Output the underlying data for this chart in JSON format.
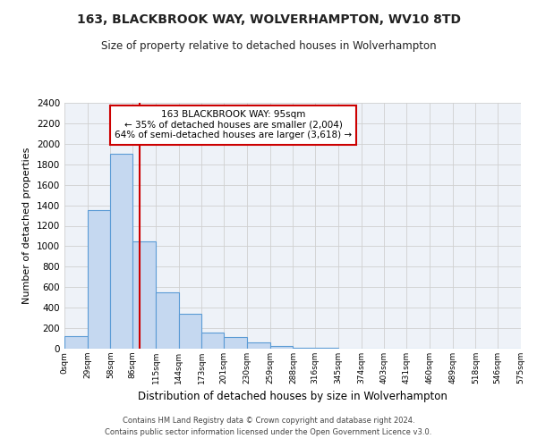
{
  "title": "163, BLACKBROOK WAY, WOLVERHAMPTON, WV10 8TD",
  "subtitle": "Size of property relative to detached houses in Wolverhampton",
  "xlabel": "Distribution of detached houses by size in Wolverhampton",
  "ylabel": "Number of detached properties",
  "footer_line1": "Contains HM Land Registry data © Crown copyright and database right 2024.",
  "footer_line2": "Contains public sector information licensed under the Open Government Licence v3.0.",
  "bin_edges": [
    0,
    29,
    58,
    86,
    115,
    144,
    173,
    201,
    230,
    259,
    288,
    316,
    345,
    374,
    403,
    431,
    460,
    489,
    518,
    546,
    575
  ],
  "bin_labels": [
    "0sqm",
    "29sqm",
    "58sqm",
    "86sqm",
    "115sqm",
    "144sqm",
    "173sqm",
    "201sqm",
    "230sqm",
    "259sqm",
    "288sqm",
    "316sqm",
    "345sqm",
    "374sqm",
    "403sqm",
    "431sqm",
    "460sqm",
    "489sqm",
    "518sqm",
    "546sqm",
    "575sqm"
  ],
  "counts": [
    120,
    1350,
    1900,
    1050,
    550,
    340,
    155,
    110,
    60,
    30,
    10,
    5,
    3,
    2,
    1,
    1,
    0,
    1,
    0,
    0
  ],
  "bar_color": "#c5d8f0",
  "bar_edge_color": "#5b9bd5",
  "grid_color": "#d0d0d0",
  "property_line_x": 95,
  "property_line_color": "#cc0000",
  "annotation_title": "163 BLACKBROOK WAY: 95sqm",
  "annotation_line1": "← 35% of detached houses are smaller (2,004)",
  "annotation_line2": "64% of semi-detached houses are larger (3,618) →",
  "annotation_box_color": "#ffffff",
  "annotation_box_edge_color": "#cc0000",
  "ylim": [
    0,
    2400
  ],
  "yticks": [
    0,
    200,
    400,
    600,
    800,
    1000,
    1200,
    1400,
    1600,
    1800,
    2000,
    2200,
    2400
  ],
  "background_color": "#ffffff",
  "plot_bg_color": "#eef2f8"
}
